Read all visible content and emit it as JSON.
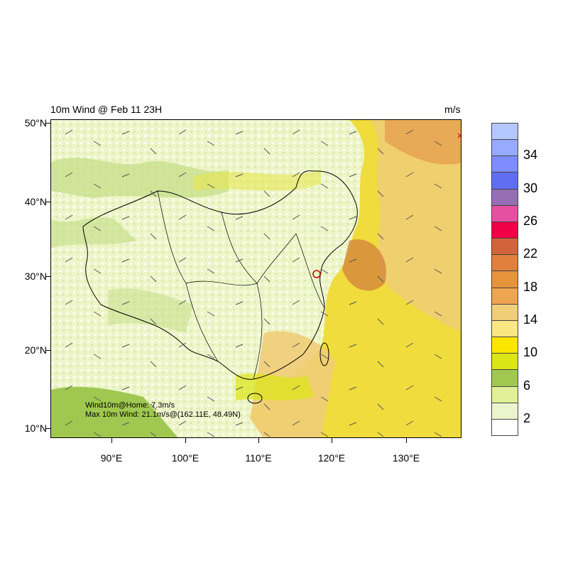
{
  "header": {
    "title": "10m Wind @ Feb 11 23H",
    "units": "m/s"
  },
  "axes": {
    "y_labels": [
      "50°N",
      "40°N",
      "30°N",
      "20°N",
      "10°N"
    ],
    "x_labels": [
      "90°E",
      "100°E",
      "110°E",
      "120°E",
      "130°E"
    ],
    "lat_range": [
      8.5,
      50.5
    ],
    "lon_range": [
      81.5,
      138.5
    ]
  },
  "annotations": {
    "home_wind": "Wind10m@Home: 7.3m/s",
    "max_wind": "Max 10m Wind: 21.1m/s@(162.11E, 48.49N)"
  },
  "colorbar": {
    "labels": [
      "34",
      "30",
      "26",
      "22",
      "18",
      "14",
      "10",
      "6",
      "2"
    ],
    "colors": [
      "#b4c8ff",
      "#96aaff",
      "#7d8cff",
      "#5f6ef0",
      "#966eb4",
      "#e650a0",
      "#f00046",
      "#d2643c",
      "#e17f3c",
      "#e6943c",
      "#eea550",
      "#f0cd78",
      "#fae682",
      "#fae600",
      "#dce614",
      "#a0c850",
      "#e1f096",
      "#ebf5cd",
      "#ffffff"
    ]
  },
  "map": {
    "wind_field": "10m wind speed shading with wind barbs",
    "land_color": "#e6f0b4",
    "ocean_color": "#f0d232"
  }
}
